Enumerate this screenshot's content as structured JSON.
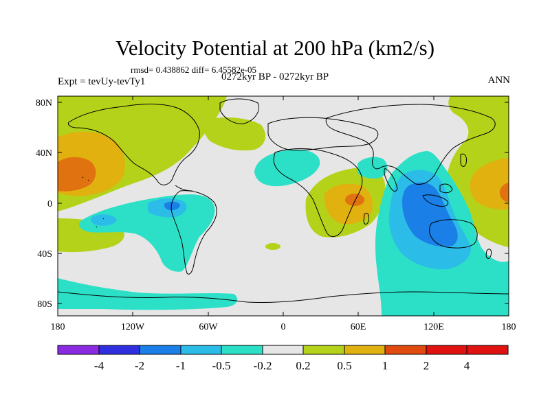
{
  "title": "Velocity Potential at 200 hPa (km2/s)",
  "stats": "rmsd= 0.438862 diff= 6.45582e-05",
  "experiment": "Expt = tevUy-tevTy1",
  "period": "0272kyr BP - 0272kyr BP",
  "season": "ANN",
  "y_ticks": [
    "80N",
    "40N",
    "0",
    "40S",
    "80S"
  ],
  "x_ticks": [
    "180",
    "120W",
    "60W",
    "0",
    "60E",
    "120E",
    "180"
  ],
  "colorbar": {
    "labels": [
      "-4",
      "-2",
      "-1",
      "-0.5",
      "-0.2",
      "0.2",
      "0.5",
      "1",
      "2",
      "4"
    ],
    "colors": [
      "#8a2be2",
      "#2f2fe0",
      "#1a7fe6",
      "#2bbde8",
      "#2ce0c8",
      "#e6e6e6",
      "#b4d219",
      "#e0b10f",
      "#e04a0f",
      "#e01212"
    ]
  },
  "fields": {
    "neutral": "#e6e6e6",
    "weak_positive": "#b4d219",
    "moderate_positive": "#e0b10f",
    "strong_positive": "#e0720f",
    "weak_negative": "#2ce0c8",
    "moderate_negative": "#2bbde8",
    "strong_negative": "#1a7fe6"
  }
}
